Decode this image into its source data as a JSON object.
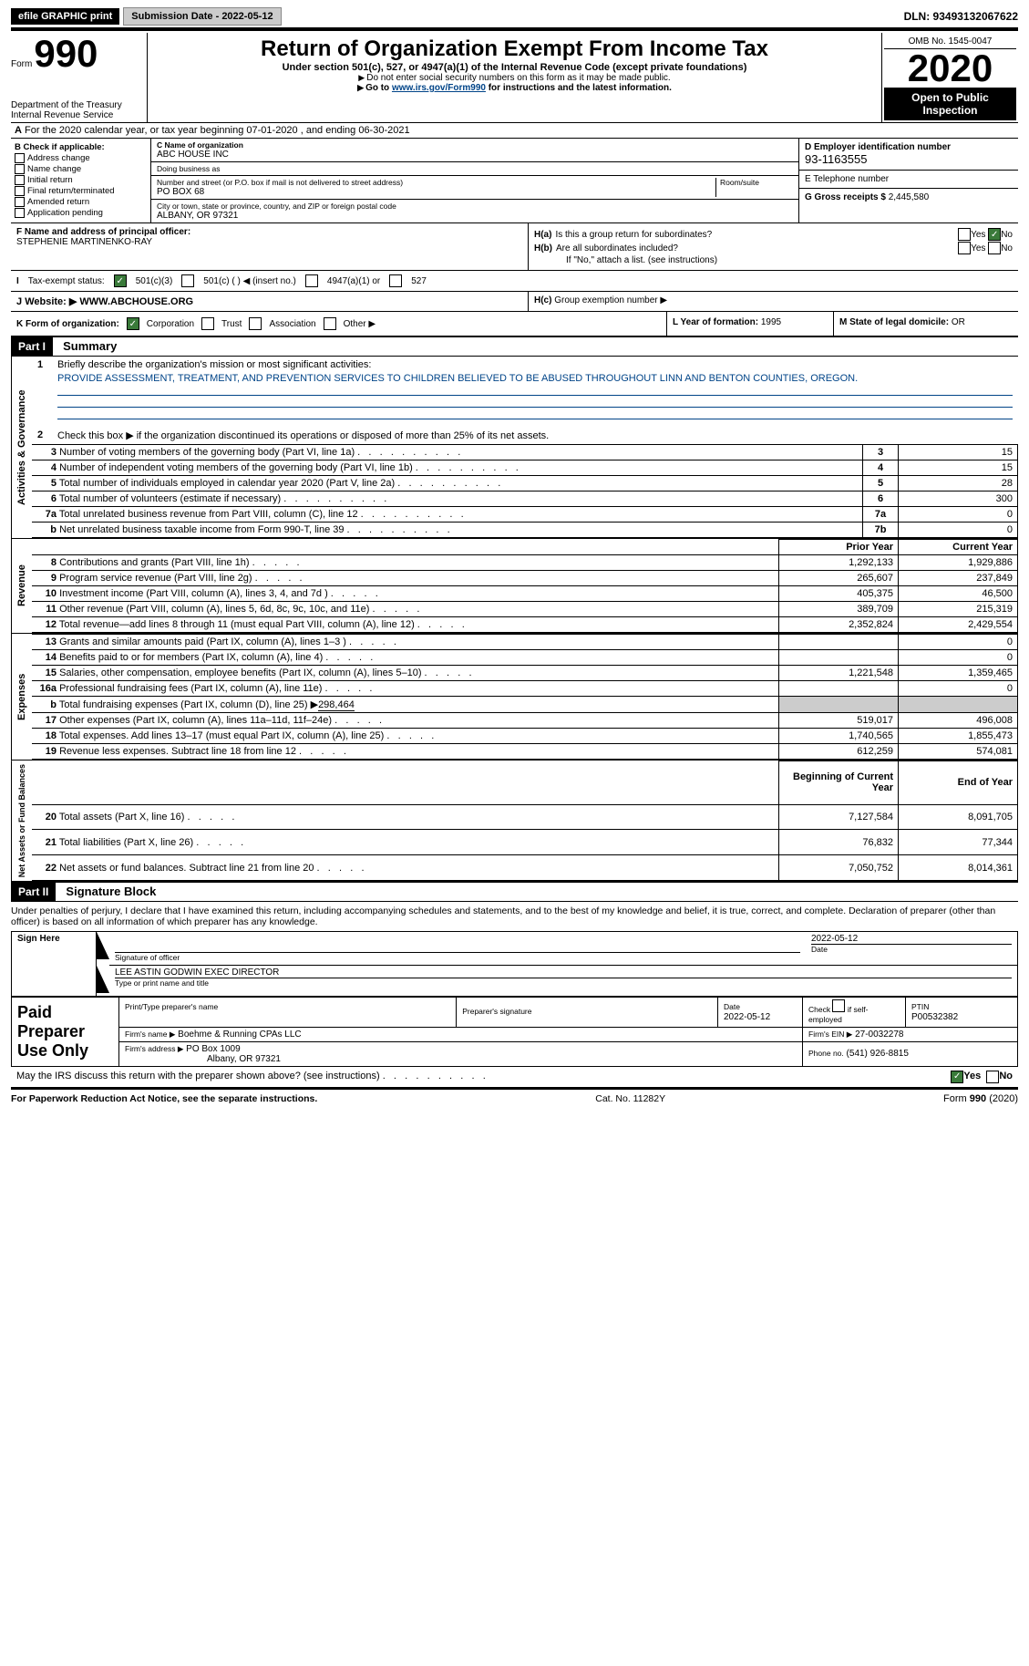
{
  "topbar": {
    "efile": "efile GRAPHIC print",
    "submission_label": "Submission Date - 2022-05-12",
    "dln": "DLN: 93493132067622"
  },
  "header": {
    "form_word": "Form",
    "form_num": "990",
    "dept1": "Department of the Treasury",
    "dept2": "Internal Revenue Service",
    "title": "Return of Organization Exempt From Income Tax",
    "sub": "Under section 501(c), 527, or 4947(a)(1) of the Internal Revenue Code (except private foundations)",
    "note1": "Do not enter social security numbers on this form as it may be made public.",
    "note2_a": "Go to ",
    "note2_link": "www.irs.gov/Form990",
    "note2_b": " for instructions and the latest information.",
    "omb": "OMB No. 1545-0047",
    "year": "2020",
    "public1": "Open to Public",
    "public2": "Inspection"
  },
  "secA": {
    "prefix": "A",
    "text": "For the 2020 calendar year, or tax year beginning 07-01-2020    , and ending 06-30-2021"
  },
  "boxB": {
    "title": "B Check if applicable:",
    "addr": "Address change",
    "name": "Name change",
    "initial": "Initial return",
    "final": "Final return/terminated",
    "amended": "Amended return",
    "app": "Application pending"
  },
  "boxC": {
    "name_lbl": "C Name of organization",
    "name": "ABC HOUSE INC",
    "dba_lbl": "Doing business as",
    "dba": "",
    "street_lbl": "Number and street (or P.O. box if mail is not delivered to street address)",
    "street": "PO BOX 68",
    "room_lbl": "Room/suite",
    "city_lbl": "City or town, state or province, country, and ZIP or foreign postal code",
    "city": "ALBANY, OR  97321"
  },
  "boxD": {
    "ein_lbl": "D Employer identification number",
    "ein": "93-1163555",
    "phone_lbl": "E Telephone number",
    "phone": "",
    "gross_lbl": "G Gross receipts $",
    "gross": "2,445,580"
  },
  "boxF": {
    "lbl": "F Name and address of principal officer:",
    "name": "STEPHENIE MARTINENKO-RAY"
  },
  "boxH": {
    "ha_lbl": "H(a)",
    "ha_txt": "Is this a group return for subordinates?",
    "hb_lbl": "H(b)",
    "hb_txt": "Are all subordinates included?",
    "hb_note": "If \"No,\" attach a list. (see instructions)",
    "hc_lbl": "H(c)",
    "hc_txt": "Group exemption number ▶",
    "yes": "Yes",
    "no": "No"
  },
  "rowI": {
    "lbl": "Tax-exempt status:",
    "c3": "501(c)(3)",
    "c": "501(c) (  ) ◀ (insert no.)",
    "a4947": "4947(a)(1) or",
    "s527": "527"
  },
  "rowJ": {
    "lbl": "Website: ▶",
    "val": "WWW.ABCHOUSE.ORG"
  },
  "rowK": {
    "lbl": "K Form of organization:",
    "corp": "Corporation",
    "trust": "Trust",
    "assoc": "Association",
    "other": "Other ▶"
  },
  "rowL": {
    "lbl": "L Year of formation:",
    "val": "1995"
  },
  "rowM": {
    "lbl": "M State of legal domicile:",
    "val": "OR"
  },
  "part1": {
    "hdr": "Part I",
    "title": "Summary"
  },
  "gov": {
    "tab": "Activities & Governance",
    "q1_num": "1",
    "q1": "Briefly describe the organization's mission or most significant activities:",
    "q1_ans": "PROVIDE ASSESSMENT, TREATMENT, AND PREVENTION SERVICES TO CHILDREN BELIEVED TO BE ABUSED THROUGHOUT LINN AND BENTON COUNTIES, OREGON.",
    "q2_num": "2",
    "q2": "Check this box ▶        if the organization discontinued its operations or disposed of more than 25% of its net assets.",
    "rows": [
      {
        "n": "3",
        "t": "Number of voting members of the governing body (Part VI, line 1a)",
        "box": "3",
        "v": "15"
      },
      {
        "n": "4",
        "t": "Number of independent voting members of the governing body (Part VI, line 1b)",
        "box": "4",
        "v": "15"
      },
      {
        "n": "5",
        "t": "Total number of individuals employed in calendar year 2020 (Part V, line 2a)",
        "box": "5",
        "v": "28"
      },
      {
        "n": "6",
        "t": "Total number of volunteers (estimate if necessary)",
        "box": "6",
        "v": "300"
      },
      {
        "n": "7a",
        "t": "Total unrelated business revenue from Part VIII, column (C), line 12",
        "box": "7a",
        "v": "0"
      },
      {
        "n": "b",
        "t": "Net unrelated business taxable income from Form 990-T, line 39",
        "box": "7b",
        "v": "0"
      }
    ]
  },
  "rev": {
    "tab": "Revenue",
    "hdr_prior": "Prior Year",
    "hdr_curr": "Current Year",
    "rows": [
      {
        "n": "8",
        "t": "Contributions and grants (Part VIII, line 1h)",
        "p": "1,292,133",
        "c": "1,929,886"
      },
      {
        "n": "9",
        "t": "Program service revenue (Part VIII, line 2g)",
        "p": "265,607",
        "c": "237,849"
      },
      {
        "n": "10",
        "t": "Investment income (Part VIII, column (A), lines 3, 4, and 7d )",
        "p": "405,375",
        "c": "46,500"
      },
      {
        "n": "11",
        "t": "Other revenue (Part VIII, column (A), lines 5, 6d, 8c, 9c, 10c, and 11e)",
        "p": "389,709",
        "c": "215,319"
      },
      {
        "n": "12",
        "t": "Total revenue—add lines 8 through 11 (must equal Part VIII, column (A), line 12)",
        "p": "2,352,824",
        "c": "2,429,554"
      }
    ]
  },
  "exp": {
    "tab": "Expenses",
    "rows": [
      {
        "n": "13",
        "t": "Grants and similar amounts paid (Part IX, column (A), lines 1–3 )",
        "p": "",
        "c": "0"
      },
      {
        "n": "14",
        "t": "Benefits paid to or for members (Part IX, column (A), line 4)",
        "p": "",
        "c": "0"
      },
      {
        "n": "15",
        "t": "Salaries, other compensation, employee benefits (Part IX, column (A), lines 5–10)",
        "p": "1,221,548",
        "c": "1,359,465"
      },
      {
        "n": "16a",
        "t": "Professional fundraising fees (Part IX, column (A), line 11e)",
        "p": "",
        "c": "0"
      }
    ],
    "b_n": "b",
    "b_t_a": "Total fundraising expenses (Part IX, column (D), line 25) ▶",
    "b_t_v": "298,464",
    "rows2": [
      {
        "n": "17",
        "t": "Other expenses (Part IX, column (A), lines 11a–11d, 11f–24e)",
        "p": "519,017",
        "c": "496,008"
      },
      {
        "n": "18",
        "t": "Total expenses. Add lines 13–17 (must equal Part IX, column (A), line 25)",
        "p": "1,740,565",
        "c": "1,855,473"
      },
      {
        "n": "19",
        "t": "Revenue less expenses. Subtract line 18 from line 12",
        "p": "612,259",
        "c": "574,081"
      }
    ]
  },
  "net": {
    "tab": "Net Assets or Fund Balances",
    "hdr_beg": "Beginning of Current Year",
    "hdr_end": "End of Year",
    "rows": [
      {
        "n": "20",
        "t": "Total assets (Part X, line 16)",
        "p": "7,127,584",
        "c": "8,091,705"
      },
      {
        "n": "21",
        "t": "Total liabilities (Part X, line 26)",
        "p": "76,832",
        "c": "77,344"
      },
      {
        "n": "22",
        "t": "Net assets or fund balances. Subtract line 21 from line 20",
        "p": "7,050,752",
        "c": "8,014,361"
      }
    ]
  },
  "part2": {
    "hdr": "Part II",
    "title": "Signature Block"
  },
  "sig": {
    "penalty": "Under penalties of perjury, I declare that I have examined this return, including accompanying schedules and statements, and to the best of my knowledge and belief, it is true, correct, and complete. Declaration of preparer (other than officer) is based on all information of which preparer has any knowledge.",
    "sign_here": "Sign Here",
    "sig_of": "Signature of officer",
    "date_lbl": "Date",
    "date_val": "2022-05-12",
    "officer": "LEE ASTIN GODWIN  EXEC DIRECTOR",
    "type_lbl": "Type or print name and title"
  },
  "paid": {
    "left": "Paid Preparer Use Only",
    "print_lbl": "Print/Type preparer's name",
    "sig_lbl": "Preparer's signature",
    "date_lbl": "Date",
    "date_val": "2022-05-12",
    "check_lbl": "Check         if self-employed",
    "ptin_lbl": "PTIN",
    "ptin_val": "P00532382",
    "firm_name_lbl": "Firm's name      ▶",
    "firm_name": "Boehme & Running CPAs LLC",
    "firm_ein_lbl": "Firm's EIN ▶",
    "firm_ein": "27-0032278",
    "firm_addr_lbl": "Firm's address ▶",
    "firm_addr1": "PO Box 1009",
    "firm_addr2": "Albany, OR  97321",
    "phone_lbl": "Phone no.",
    "phone_val": "(541) 926-8815"
  },
  "discuss": {
    "q": "May the IRS discuss this return with the preparer shown above? (see instructions)",
    "yes": "Yes",
    "no": "No"
  },
  "footer": {
    "l": "For Paperwork Reduction Act Notice, see the separate instructions.",
    "m": "Cat. No. 11282Y",
    "r": "Form 990 (2020)"
  }
}
